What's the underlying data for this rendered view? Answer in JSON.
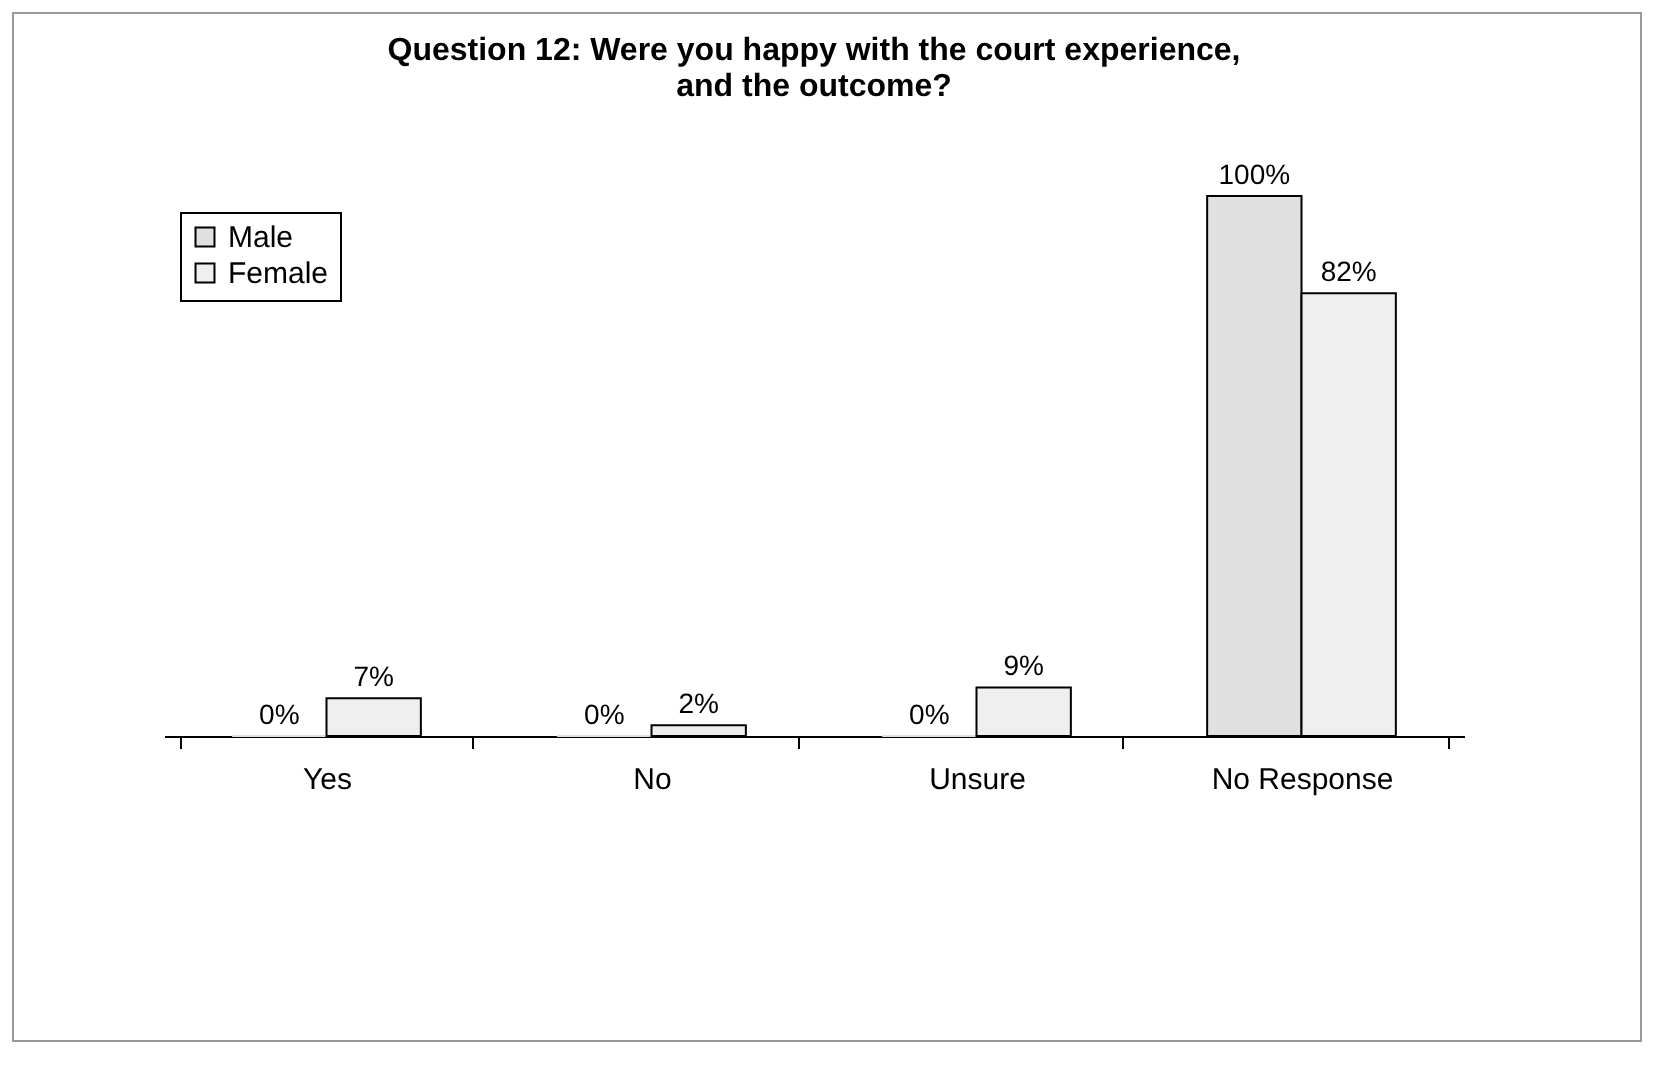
{
  "chart_data": {
    "type": "bar",
    "title": "Question 12:  Were you happy with the court experience,\nand the outcome?",
    "categories": [
      "Yes",
      "No",
      "Unsure",
      "No Response"
    ],
    "series": [
      {
        "name": "Male",
        "color": "#e0e0e0",
        "values": [
          0,
          0,
          0,
          100
        ],
        "value_labels": [
          "0%",
          "0%",
          "0%",
          "100%"
        ]
      },
      {
        "name": "Female",
        "color": "#efefef",
        "values": [
          7,
          2,
          9,
          82
        ],
        "value_labels": [
          "7%",
          "2%",
          "9%",
          "82%"
        ]
      }
    ],
    "legend": "top left",
    "grid": false
  }
}
